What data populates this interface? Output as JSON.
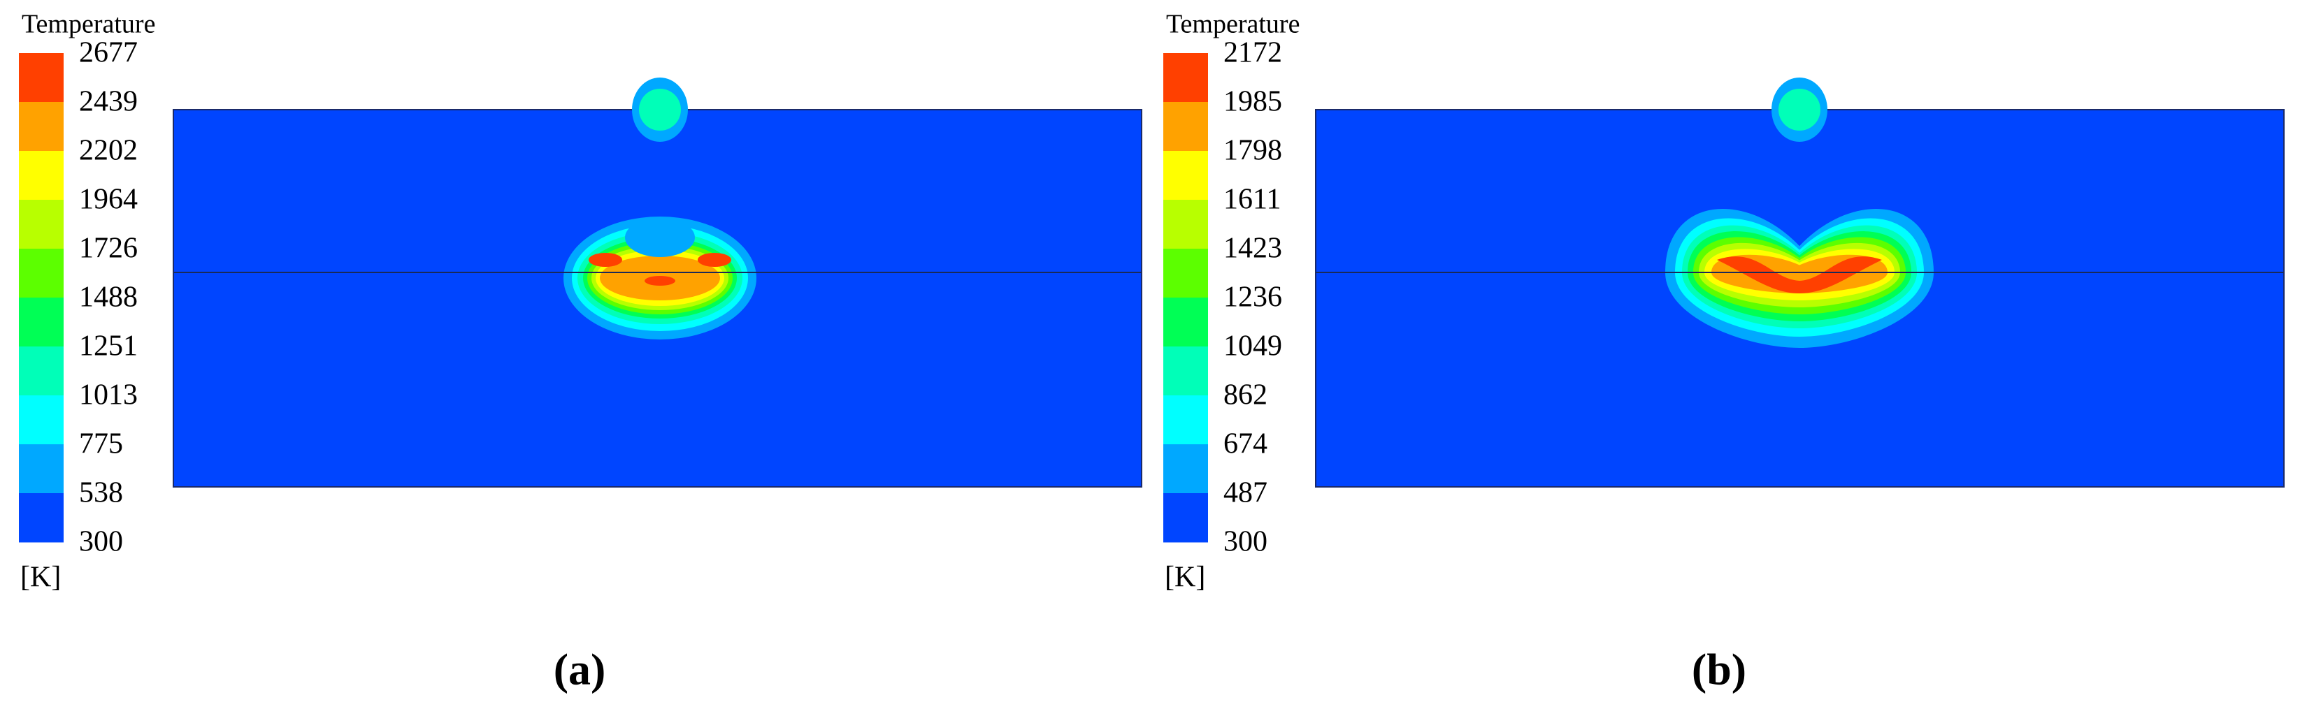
{
  "panels": [
    {
      "legend_title": "Temperature",
      "ticks": [
        2677,
        2439,
        2202,
        1964,
        1726,
        1488,
        1251,
        1013,
        775,
        538,
        300
      ],
      "unit": "[K]",
      "label": "(a)",
      "colors": [
        "#ff4000",
        "#ffa200",
        "#ffff00",
        "#b8ff00",
        "#5cff00",
        "#00ff55",
        "#00ffb8",
        "#00ffff",
        "#00a8ff",
        "#0045ff"
      ]
    },
    {
      "legend_title": "Temperature",
      "ticks": [
        2172,
        1985,
        1798,
        1611,
        1423,
        1236,
        1049,
        862,
        674,
        487,
        300
      ],
      "unit": "[K]",
      "label": "(b)",
      "colors": [
        "#ff4000",
        "#ffa200",
        "#ffff00",
        "#b8ff00",
        "#5cff00",
        "#00ff55",
        "#00ffb8",
        "#00ffff",
        "#00a8ff",
        "#0045ff"
      ]
    }
  ]
}
